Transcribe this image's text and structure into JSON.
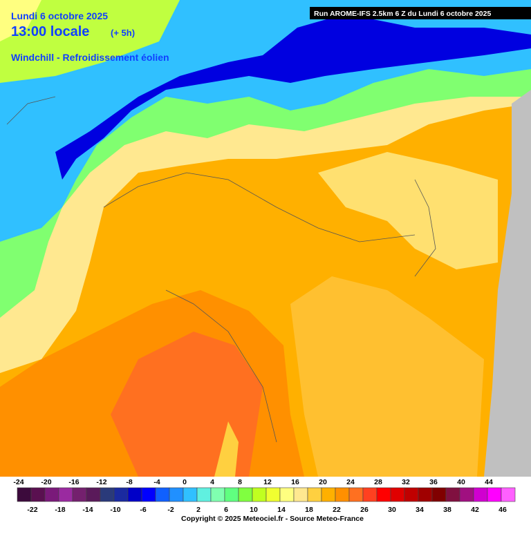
{
  "header": {
    "date": "Lundi 6 octobre 2025",
    "time": "13:00 locale",
    "offset": "(+ 5h)",
    "variable": "Windchill - Refroidissement éolien"
  },
  "run": "Run AROME-IFS 2.5km 6 Z du Lundi 6 octobre 2025",
  "legend": {
    "ticks": [
      -24,
      -22,
      -20,
      -18,
      -16,
      -14,
      -12,
      -10,
      -8,
      -6,
      -4,
      -2,
      0,
      2,
      4,
      6,
      8,
      10,
      12,
      14,
      16,
      18,
      20,
      22,
      24,
      26,
      28,
      30,
      32,
      34,
      36,
      38,
      40,
      42,
      44,
      46
    ],
    "colors": [
      "#3c0a3c",
      "#5a1050",
      "#7a1a7a",
      "#9a2aa0",
      "#74206e",
      "#5a1a5a",
      "#2a3a7a",
      "#1a2aa0",
      "#0000c8",
      "#0000ff",
      "#1060ff",
      "#2090ff",
      "#30c0ff",
      "#60f0e0",
      "#80ffb0",
      "#60ff80",
      "#80ff40",
      "#c0ff20",
      "#f0ff30",
      "#ffff80",
      "#ffe890",
      "#ffd040",
      "#ffb000",
      "#ff9000",
      "#ff7020",
      "#ff4020",
      "#ff0000",
      "#e00000",
      "#c00000",
      "#a00000",
      "#800000",
      "#801040",
      "#a01080",
      "#d000d0",
      "#ff00ff",
      "#ff60ff"
    ]
  },
  "copyright": "Copyright © 2025 Meteociel.fr - Source Meteo-France"
}
